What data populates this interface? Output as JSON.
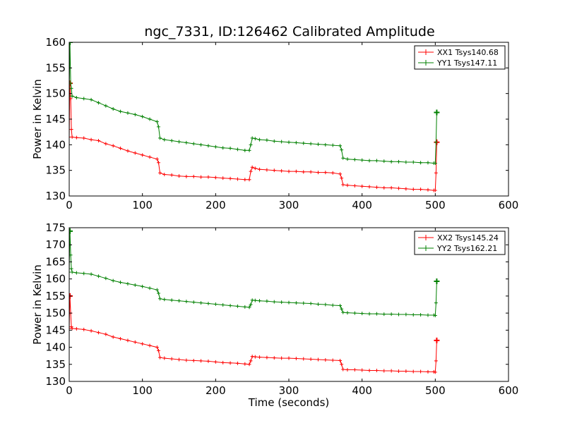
{
  "figure": {
    "title": "ngc_7331, ID:126462 Calibrated Amplitude",
    "xlabel": "Time (seconds)"
  },
  "chart_data": [
    {
      "type": "line",
      "ylabel": "Power in Kelvin",
      "xlabel": "",
      "xlim": [
        0,
        600
      ],
      "ylim": [
        130,
        160
      ],
      "xticks": [
        0,
        100,
        200,
        300,
        400,
        500,
        600
      ],
      "yticks": [
        130,
        135,
        140,
        145,
        150,
        155,
        160
      ],
      "legend_position": "top-right",
      "marker": "+",
      "series": [
        {
          "name": "XX1 Tsys140.68",
          "color": "#ff0000",
          "x": [
            0,
            1,
            2,
            3,
            4,
            10,
            20,
            30,
            40,
            50,
            60,
            70,
            80,
            90,
            100,
            110,
            120,
            122,
            124,
            130,
            140,
            150,
            160,
            170,
            180,
            190,
            200,
            210,
            220,
            230,
            240,
            246,
            248,
            250,
            254,
            260,
            270,
            280,
            290,
            300,
            310,
            320,
            330,
            340,
            350,
            360,
            370,
            372,
            374,
            380,
            390,
            400,
            410,
            420,
            430,
            440,
            450,
            460,
            470,
            480,
            490,
            498,
            500,
            501,
            502
          ],
          "y": [
            141.5,
            152,
            149,
            143,
            141.5,
            141.4,
            141.3,
            141.0,
            140.8,
            140.2,
            139.8,
            139.3,
            138.8,
            138.4,
            138.0,
            137.6,
            137.2,
            136.5,
            134.5,
            134.2,
            134.1,
            133.9,
            133.8,
            133.8,
            133.7,
            133.7,
            133.6,
            133.5,
            133.4,
            133.3,
            133.2,
            133.2,
            134.8,
            135.6,
            135.4,
            135.2,
            135.1,
            135.0,
            134.9,
            134.8,
            134.8,
            134.7,
            134.7,
            134.6,
            134.6,
            134.5,
            134.3,
            133.5,
            132.2,
            132.1,
            132.0,
            131.9,
            131.8,
            131.7,
            131.6,
            131.6,
            131.5,
            131.4,
            131.3,
            131.3,
            131.2,
            131.1,
            131.1,
            134.5,
            140.5
          ]
        },
        {
          "name": "YY1 Tsys147.11",
          "color": "#008000",
          "x": [
            0,
            1,
            2,
            3,
            4,
            10,
            20,
            30,
            40,
            50,
            60,
            70,
            80,
            90,
            100,
            110,
            120,
            122,
            124,
            130,
            140,
            150,
            160,
            170,
            180,
            190,
            200,
            210,
            220,
            230,
            240,
            246,
            248,
            250,
            254,
            260,
            270,
            280,
            290,
            300,
            310,
            320,
            330,
            340,
            350,
            360,
            370,
            372,
            374,
            380,
            390,
            400,
            410,
            420,
            430,
            440,
            450,
            460,
            470,
            480,
            490,
            498,
            500,
            501,
            502
          ],
          "y": [
            149.5,
            160,
            152,
            151,
            149.5,
            149.2,
            149.0,
            148.8,
            148.2,
            147.6,
            147.0,
            146.5,
            146.2,
            145.9,
            145.5,
            145.0,
            144.5,
            143.5,
            141.3,
            141.0,
            140.8,
            140.6,
            140.4,
            140.2,
            140.0,
            139.8,
            139.6,
            139.4,
            139.3,
            139.1,
            138.9,
            138.9,
            140.0,
            141.3,
            141.2,
            141.0,
            140.9,
            140.7,
            140.6,
            140.5,
            140.4,
            140.3,
            140.2,
            140.1,
            140.0,
            139.9,
            139.8,
            139.0,
            137.4,
            137.2,
            137.1,
            137.0,
            136.9,
            136.9,
            136.8,
            136.7,
            136.7,
            136.6,
            136.6,
            136.5,
            136.5,
            136.4,
            136.4,
            140.5,
            146.3
          ]
        }
      ]
    },
    {
      "type": "line",
      "ylabel": "Power in Kelvin",
      "xlabel": "Time (seconds)",
      "xlim": [
        0,
        600
      ],
      "ylim": [
        130,
        175
      ],
      "xticks": [
        0,
        100,
        200,
        300,
        400,
        500,
        600
      ],
      "yticks": [
        130,
        135,
        140,
        145,
        150,
        155,
        160,
        165,
        170,
        175
      ],
      "legend_position": "top-right",
      "marker": "+",
      "series": [
        {
          "name": "XX2 Tsys145.24",
          "color": "#ff0000",
          "x": [
            0,
            1,
            2,
            3,
            4,
            10,
            20,
            30,
            40,
            50,
            60,
            70,
            80,
            90,
            100,
            110,
            120,
            122,
            124,
            130,
            140,
            150,
            160,
            170,
            180,
            190,
            200,
            210,
            220,
            230,
            240,
            246,
            248,
            250,
            254,
            260,
            270,
            280,
            290,
            300,
            310,
            320,
            330,
            340,
            350,
            360,
            370,
            372,
            374,
            380,
            390,
            400,
            410,
            420,
            430,
            440,
            450,
            460,
            470,
            480,
            490,
            498,
            500,
            501,
            502
          ],
          "y": [
            145.5,
            155,
            150,
            146,
            145.5,
            145.4,
            145.2,
            144.8,
            144.3,
            143.8,
            143.0,
            142.5,
            142.0,
            141.5,
            141.0,
            140.5,
            140.0,
            139.0,
            137.0,
            136.8,
            136.6,
            136.4,
            136.2,
            136.1,
            136.0,
            135.9,
            135.7,
            135.5,
            135.4,
            135.3,
            135.1,
            135.0,
            136.0,
            137.3,
            137.2,
            137.1,
            137.0,
            136.9,
            136.8,
            136.8,
            136.7,
            136.6,
            136.5,
            136.4,
            136.3,
            136.2,
            136.1,
            135.0,
            133.5,
            133.4,
            133.4,
            133.3,
            133.2,
            133.2,
            133.1,
            133.1,
            133.0,
            133.0,
            132.9,
            132.9,
            132.8,
            132.8,
            132.7,
            136.0,
            142.0
          ]
        },
        {
          "name": "YY2 Tsys162.21",
          "color": "#008000",
          "x": [
            0,
            1,
            2,
            3,
            4,
            10,
            20,
            30,
            40,
            50,
            60,
            70,
            80,
            90,
            100,
            110,
            120,
            122,
            124,
            130,
            140,
            150,
            160,
            170,
            180,
            190,
            200,
            210,
            220,
            230,
            240,
            246,
            248,
            250,
            254,
            260,
            270,
            280,
            290,
            300,
            310,
            320,
            330,
            340,
            350,
            360,
            370,
            372,
            374,
            380,
            390,
            400,
            410,
            420,
            430,
            440,
            450,
            460,
            470,
            480,
            490,
            498,
            500,
            501,
            502
          ],
          "y": [
            162,
            174,
            167,
            163,
            162,
            161.8,
            161.6,
            161.4,
            160.8,
            160.2,
            159.5,
            159.0,
            158.6,
            158.2,
            157.8,
            157.3,
            156.8,
            155.8,
            154.2,
            154.0,
            153.8,
            153.6,
            153.4,
            153.2,
            153.0,
            152.8,
            152.6,
            152.4,
            152.2,
            152.0,
            151.8,
            151.7,
            152.5,
            153.8,
            153.7,
            153.6,
            153.5,
            153.3,
            153.2,
            153.1,
            153.0,
            152.9,
            152.8,
            152.6,
            152.5,
            152.3,
            152.2,
            151.2,
            150.2,
            150.1,
            150.0,
            149.9,
            149.8,
            149.8,
            149.7,
            149.7,
            149.6,
            149.6,
            149.5,
            149.5,
            149.4,
            149.4,
            149.3,
            153.0,
            159.3
          ]
        }
      ]
    }
  ]
}
